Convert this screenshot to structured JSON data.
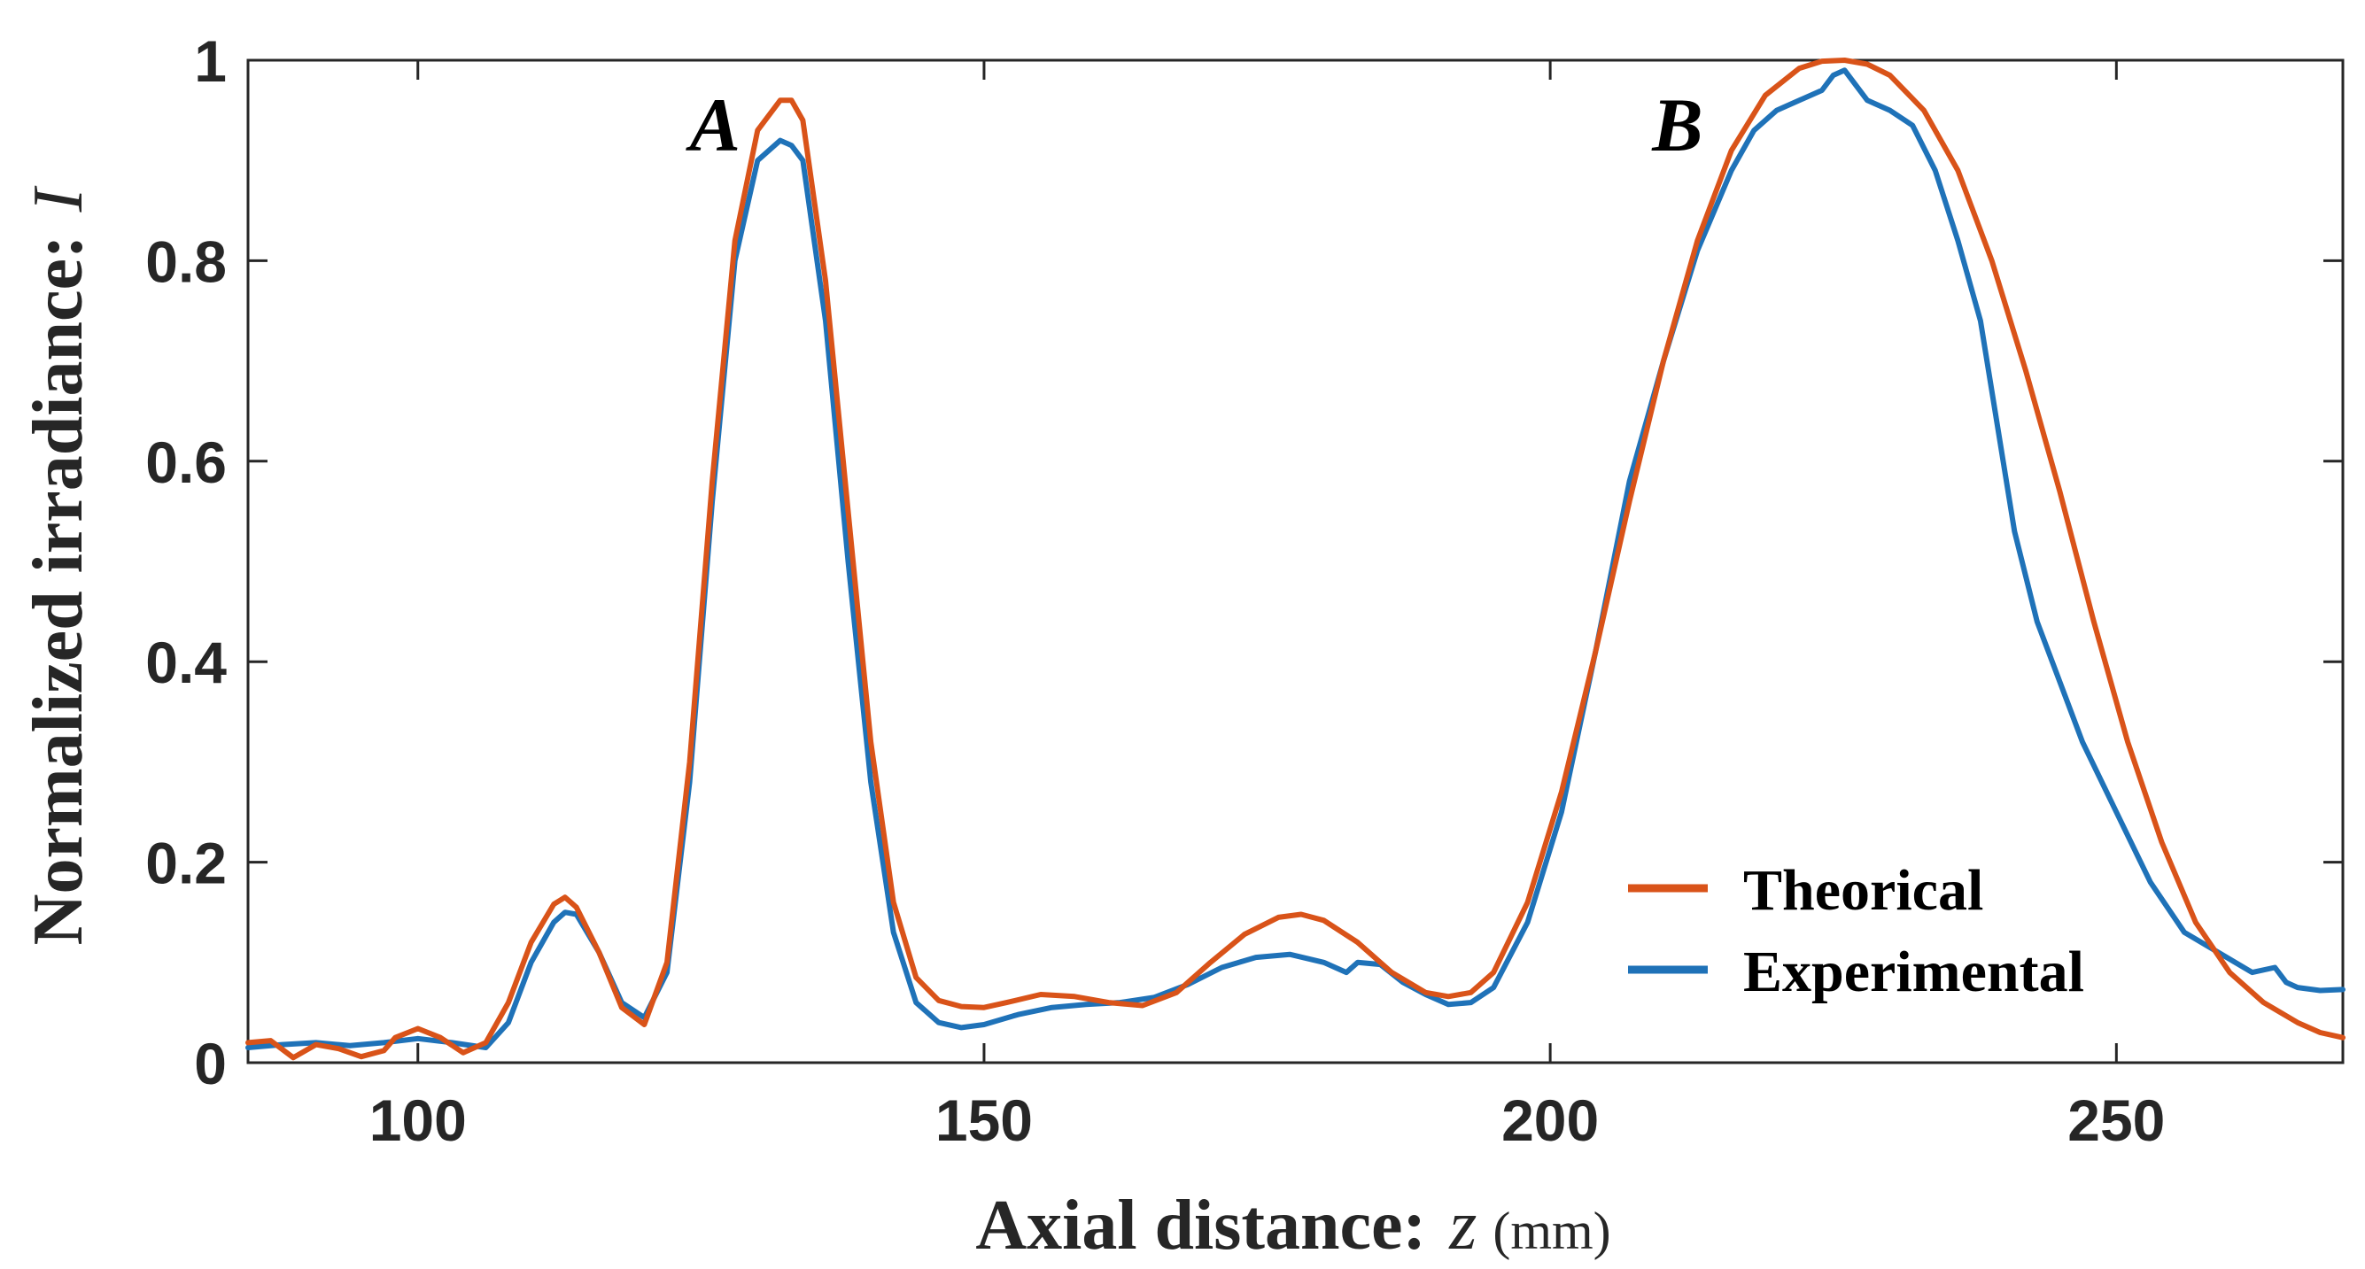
{
  "chart_data": {
    "type": "line",
    "title": "",
    "xlabel": "Axial distance:",
    "xlabel_variable": "z",
    "xlabel_unit": "(mm)",
    "ylabel": "Normalized irradiance:",
    "ylabel_variable": "I",
    "xlim": [
      85,
      270
    ],
    "ylim": [
      0,
      1
    ],
    "xticks": [
      100,
      150,
      200,
      250
    ],
    "yticks": [
      0,
      0.2,
      0.4,
      0.6,
      0.8,
      1
    ],
    "ytick_labels": [
      "0",
      "0.2",
      "0.4",
      "0.6",
      "0.8",
      "1"
    ],
    "grid": false,
    "legend_position": "bottom-right",
    "annotations": [
      {
        "text": "A",
        "x": 124,
        "y": 0.91
      },
      {
        "text": "B",
        "x": 209,
        "y": 0.91
      }
    ],
    "series": [
      {
        "name": "Theorical",
        "color": "#D95319",
        "x": [
          85,
          87,
          89,
          91,
          93,
          95,
          97,
          98,
          100,
          102,
          104,
          106,
          108,
          110,
          112,
          113,
          114,
          116,
          118,
          120,
          122,
          124,
          126,
          128,
          130,
          132,
          133,
          134,
          136,
          138,
          140,
          142,
          144,
          146,
          148,
          150,
          152,
          155,
          158,
          161,
          164,
          167,
          170,
          173,
          176,
          178,
          180,
          183,
          186,
          189,
          191,
          193,
          195,
          198,
          201,
          204,
          207,
          210,
          213,
          216,
          219,
          222,
          224,
          226,
          228,
          230,
          233,
          236,
          239,
          242,
          245,
          248,
          251,
          254,
          257,
          260,
          263,
          266,
          268,
          270
        ],
        "y": [
          0.02,
          0.022,
          0.005,
          0.018,
          0.014,
          0.006,
          0.012,
          0.025,
          0.034,
          0.025,
          0.01,
          0.02,
          0.06,
          0.12,
          0.158,
          0.165,
          0.155,
          0.11,
          0.055,
          0.038,
          0.1,
          0.3,
          0.58,
          0.82,
          0.93,
          0.96,
          0.96,
          0.94,
          0.78,
          0.55,
          0.32,
          0.16,
          0.085,
          0.062,
          0.056,
          0.055,
          0.06,
          0.068,
          0.066,
          0.06,
          0.057,
          0.07,
          0.1,
          0.128,
          0.145,
          0.148,
          0.142,
          0.12,
          0.09,
          0.07,
          0.066,
          0.07,
          0.09,
          0.16,
          0.27,
          0.41,
          0.56,
          0.7,
          0.82,
          0.91,
          0.965,
          0.992,
          0.999,
          1.0,
          0.996,
          0.985,
          0.95,
          0.89,
          0.8,
          0.69,
          0.57,
          0.44,
          0.32,
          0.22,
          0.14,
          0.09,
          0.06,
          0.04,
          0.03,
          0.025
        ]
      },
      {
        "name": "Experimental",
        "color": "#1F72B8",
        "x": [
          85,
          88,
          91,
          94,
          97,
          100,
          103,
          106,
          108,
          110,
          112,
          113,
          114,
          116,
          118,
          120,
          122,
          124,
          126,
          128,
          130,
          131,
          132,
          133,
          134,
          136,
          138,
          140,
          142,
          144,
          146,
          148,
          150,
          153,
          156,
          159,
          162,
          165,
          168,
          171,
          174,
          177,
          180,
          182,
          183,
          185,
          187,
          189,
          191,
          193,
          195,
          198,
          201,
          204,
          207,
          210,
          213,
          216,
          218,
          220,
          222,
          224,
          225,
          226,
          227,
          228,
          230,
          232,
          234,
          236,
          238,
          240,
          241,
          243,
          245,
          247,
          250,
          253,
          256,
          259,
          262,
          264,
          265,
          266,
          268,
          270
        ],
        "y": [
          0.015,
          0.018,
          0.02,
          0.017,
          0.02,
          0.024,
          0.02,
          0.015,
          0.04,
          0.1,
          0.14,
          0.15,
          0.148,
          0.11,
          0.06,
          0.045,
          0.09,
          0.28,
          0.56,
          0.8,
          0.9,
          0.91,
          0.92,
          0.915,
          0.9,
          0.74,
          0.5,
          0.28,
          0.13,
          0.06,
          0.04,
          0.035,
          0.038,
          0.048,
          0.055,
          0.058,
          0.06,
          0.065,
          0.078,
          0.095,
          0.105,
          0.108,
          0.1,
          0.09,
          0.1,
          0.098,
          0.08,
          0.068,
          0.058,
          0.06,
          0.075,
          0.14,
          0.25,
          0.41,
          0.58,
          0.7,
          0.81,
          0.89,
          0.93,
          0.95,
          0.96,
          0.97,
          0.985,
          0.99,
          0.975,
          0.96,
          0.95,
          0.935,
          0.89,
          0.82,
          0.74,
          0.6,
          0.53,
          0.44,
          0.38,
          0.32,
          0.25,
          0.18,
          0.13,
          0.11,
          0.09,
          0.095,
          0.08,
          0.075,
          0.072,
          0.073
        ]
      }
    ]
  }
}
